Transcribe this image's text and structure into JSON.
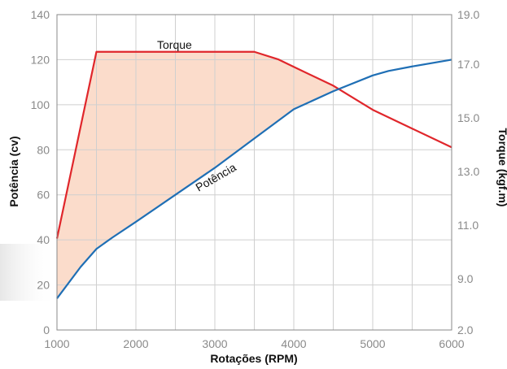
{
  "chart_data": {
    "type": "line",
    "xlabel": "Rotações (RPM)",
    "ylabel_left": "Potência (cv)",
    "ylabel_right": "Torque (kgf.m)",
    "xlim": [
      1000,
      6000
    ],
    "ylim_left": [
      0,
      140
    ],
    "right_axis": {
      "ticks": [
        2.0,
        9.0,
        11.0,
        13.0,
        15.0,
        17.0,
        19.0
      ],
      "tick_labels": [
        "2.0",
        "9.0",
        "11.0",
        "13.0",
        "15.0",
        "17.0",
        "19.0"
      ]
    },
    "x_ticks": [
      1000,
      2000,
      3000,
      4000,
      5000,
      6000
    ],
    "y_ticks_left": [
      0,
      20,
      40,
      60,
      80,
      100,
      120,
      140
    ],
    "grid": true,
    "series": [
      {
        "name": "Torque",
        "axis": "right",
        "color": "#e0262b",
        "x": [
          1000,
          1500,
          2000,
          2500,
          3000,
          3500,
          3800,
          4000,
          4500,
          5000,
          5500,
          6000
        ],
        "y": [
          10.5,
          17.5,
          17.5,
          17.5,
          17.5,
          17.5,
          17.2,
          16.9,
          16.2,
          15.3,
          14.6,
          13.9
        ]
      },
      {
        "name": "Potência",
        "axis": "left",
        "color": "#1f6fb5",
        "x": [
          1000,
          1300,
          1500,
          1700,
          2000,
          2500,
          3000,
          3500,
          4000,
          4500,
          5000,
          5200,
          5500,
          6000
        ],
        "y": [
          14,
          28,
          36,
          41,
          48,
          60,
          72,
          85,
          98,
          106,
          113,
          115,
          117,
          120
        ]
      }
    ],
    "fill_between": {
      "color": "#fbdccb"
    }
  }
}
